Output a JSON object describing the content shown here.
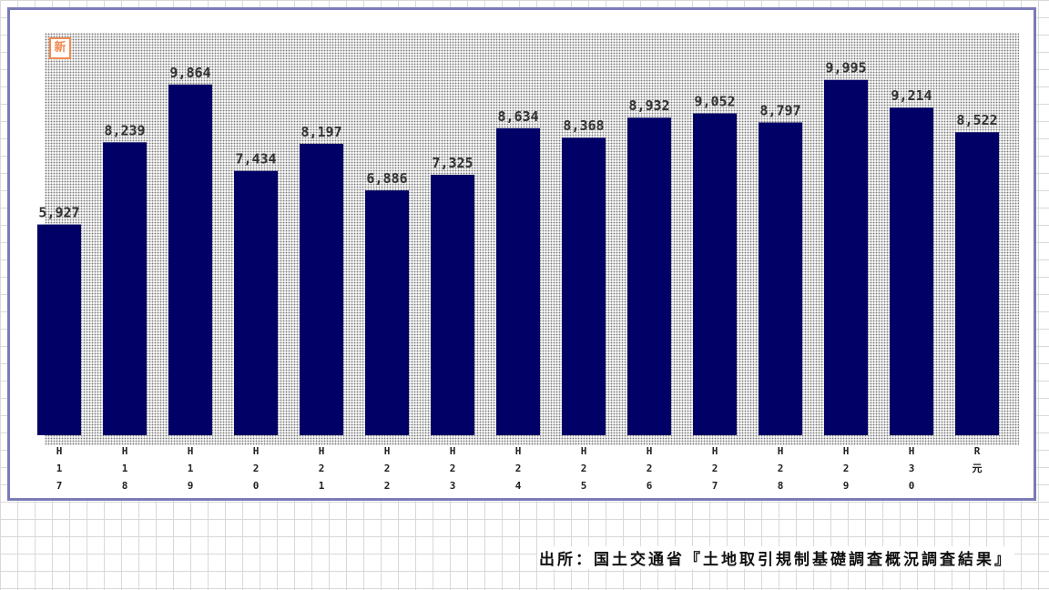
{
  "badge": {
    "text": "新"
  },
  "chart_data": {
    "type": "bar",
    "categories": [
      "H17",
      "H18",
      "H19",
      "H20",
      "H21",
      "H22",
      "H23",
      "H24",
      "H25",
      "H26",
      "H27",
      "H28",
      "H29",
      "H30",
      "R元"
    ],
    "category_tick_lines": [
      [
        "H",
        "1",
        "7"
      ],
      [
        "H",
        "1",
        "8"
      ],
      [
        "H",
        "1",
        "9"
      ],
      [
        "H",
        "2",
        "0"
      ],
      [
        "H",
        "2",
        "1"
      ],
      [
        "H",
        "2",
        "2"
      ],
      [
        "H",
        "2",
        "3"
      ],
      [
        "H",
        "2",
        "4"
      ],
      [
        "H",
        "2",
        "5"
      ],
      [
        "H",
        "2",
        "6"
      ],
      [
        "H",
        "2",
        "7"
      ],
      [
        "H",
        "2",
        "8"
      ],
      [
        "H",
        "2",
        "9"
      ],
      [
        "H",
        "3",
        "0"
      ],
      [
        "R",
        "元"
      ]
    ],
    "values": [
      5927,
      8239,
      9864,
      7434,
      8197,
      6886,
      7325,
      8634,
      8368,
      8932,
      9052,
      8797,
      9995,
      9214,
      8522
    ],
    "value_labels": [
      "5,927",
      "8,239",
      "9,864",
      "7,434",
      "8,197",
      "6,886",
      "7,325",
      "8,634",
      "8,368",
      "8,932",
      "9,052",
      "8,797",
      "9,995",
      "9,214",
      "8,522"
    ],
    "ylim": [
      0,
      10500
    ],
    "bar_color": "#000066",
    "grid": false,
    "title": "",
    "xlabel": "",
    "ylabel": ""
  },
  "source": {
    "text": "出所：国土交通省『土地取引規制基礎調査概況調査結果』"
  }
}
